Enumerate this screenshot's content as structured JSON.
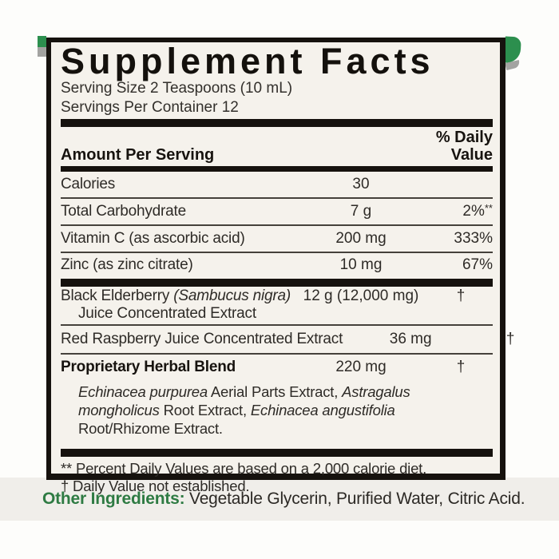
{
  "label": {
    "title": "Supplement Facts",
    "serving_size": "Serving Size 2 Teaspoons (10 mL)",
    "servings_per_container": "Servings Per Container 12",
    "columns": {
      "amount_header": "Amount Per Serving",
      "dv_header_line1": "% Daily",
      "dv_header_line2": "Value"
    },
    "rows": [
      {
        "name": "Calories",
        "amount": "30",
        "pct": ""
      },
      {
        "name": "Total Carbohydrate",
        "amount": "7 g",
        "pct": "2%",
        "pct_note": "**"
      },
      {
        "name": "Vitamin C (as ascorbic acid)",
        "amount": "200 mg",
        "pct": "333%"
      },
      {
        "name": "Zinc (as zinc citrate)",
        "amount": "10 mg",
        "pct": "67%"
      }
    ],
    "herb_rows": [
      {
        "name": "Black Elderberry ",
        "name_italic": "(Sambucus nigra)",
        "name_line2": "Juice Concentrated Extract",
        "amount": "12 g (12,000 mg)",
        "dv": "†"
      },
      {
        "name": "Red Raspberry Juice Concentrated Extract",
        "amount": "36 mg",
        "dv": "†"
      },
      {
        "name_bold": "Proprietary Herbal Blend",
        "amount": "220 mg",
        "dv": "†"
      }
    ],
    "blend_description": {
      "italic1": "Echinacea purpurea",
      "text1": " Aerial Parts Extract, ",
      "italic2": "Astragalus mongholicus",
      "text2": " Root Extract, ",
      "italic3": "Echinacea angustifolia",
      "text3": " Root/Rhizome Extract."
    },
    "footnotes": {
      "line1": "** Percent Daily Values are based on a 2,000 calorie diet.",
      "line2": "† Daily Value not established."
    }
  },
  "other_ingredients": {
    "label": "Other Ingredients:",
    "items": " Vegetable Glycerin, Purified Water, Citric Acid."
  },
  "colors": {
    "accent_green": "#2e7b43",
    "package_green": "#2c8f4e",
    "label_background": "#f5f2ec",
    "bar_black": "#16120e"
  }
}
